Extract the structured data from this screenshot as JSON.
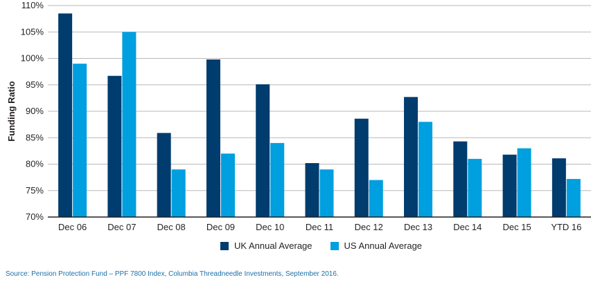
{
  "chart_data": {
    "type": "bar",
    "title": "",
    "xlabel": "",
    "ylabel": "Funding Ratio",
    "ylim": [
      70,
      110
    ],
    "yticks": [
      70,
      75,
      80,
      85,
      90,
      95,
      100,
      105,
      110
    ],
    "ytick_format": "%",
    "grid": true,
    "legend_position": "bottom-center",
    "categories": [
      "Dec 06",
      "Dec 07",
      "Dec 08",
      "Dec 09",
      "Dec 10",
      "Dec 11",
      "Dec 12",
      "Dec 13",
      "Dec 14",
      "Dec 15",
      "YTD 16"
    ],
    "series": [
      {
        "name": "UK Annual Average",
        "color": "#003c6e",
        "values": [
          108.5,
          96.7,
          85.9,
          99.8,
          95.1,
          80.2,
          88.6,
          92.7,
          84.3,
          81.8,
          81.1
        ]
      },
      {
        "name": "US Annual Average",
        "color": "#009fdf",
        "values": [
          99.0,
          105.0,
          79.0,
          82.0,
          84.0,
          79.0,
          77.0,
          88.0,
          81.0,
          83.0,
          77.2
        ]
      }
    ]
  },
  "source_note": "Source: Pension Protection Fund – PPF 7800 Index, Columbia Threadneedle Investments, September 2016."
}
